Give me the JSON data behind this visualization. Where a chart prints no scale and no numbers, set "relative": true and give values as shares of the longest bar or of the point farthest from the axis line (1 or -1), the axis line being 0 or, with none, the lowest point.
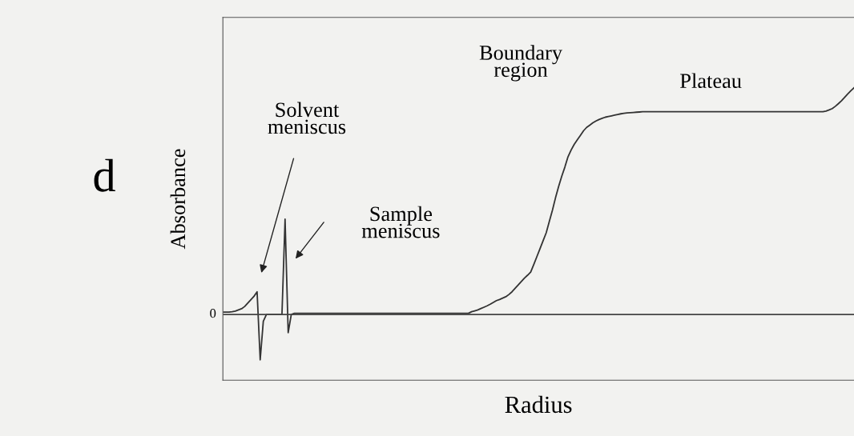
{
  "chart_data": {
    "type": "line",
    "relative": true,
    "xlabel": "Radius",
    "ylabel": "Absorbance",
    "categories": [
      null,
      null,
      null,
      null,
      null,
      null,
      null,
      null,
      null,
      null,
      null,
      null,
      null,
      null,
      null,
      null,
      null,
      null,
      null,
      null,
      null,
      null,
      null,
      null,
      null,
      null,
      null,
      null,
      null,
      null,
      null,
      null,
      null,
      null,
      null,
      null,
      null,
      null,
      null,
      null,
      null,
      null,
      null,
      null,
      null,
      null,
      null,
      null,
      null,
      null,
      null,
      null,
      null,
      null,
      null,
      null,
      null,
      null,
      null,
      null,
      null,
      null,
      null,
      null,
      null,
      null,
      null,
      null,
      null,
      null,
      null,
      null,
      null,
      null,
      null,
      null,
      null,
      null,
      null,
      null,
      null,
      null,
      null,
      null,
      null,
      null,
      null,
      null,
      null,
      null,
      null,
      null,
      null,
      null,
      null,
      null,
      null,
      null,
      null,
      null,
      null,
      null,
      null,
      null,
      null,
      null,
      null,
      null,
      null,
      null,
      null,
      null,
      null,
      null,
      null,
      null,
      null,
      null,
      null,
      null,
      null,
      null,
      null,
      null,
      null,
      null,
      null,
      null,
      null,
      null,
      null,
      null,
      null,
      null,
      null,
      null,
      null,
      null,
      null,
      null,
      null,
      null,
      null,
      null,
      null,
      null,
      null,
      null,
      null,
      null,
      null,
      null,
      null,
      null,
      null,
      null,
      null,
      null,
      null,
      null,
      null,
      null,
      null,
      null,
      null,
      null,
      null,
      null,
      null,
      null,
      null,
      null,
      null,
      null,
      null,
      null,
      null,
      null,
      null,
      null,
      null,
      null,
      null,
      null,
      null,
      null,
      null,
      null,
      null,
      null,
      null,
      null,
      null,
      null,
      null,
      null,
      null,
      null,
      null,
      null,
      null,
      null,
      null,
      null
    ],
    "series": [
      {
        "color": "#333333",
        "values": [
          0.01,
          0.01,
          0.01,
          0.012,
          0.015,
          0.02,
          0.025,
          0.035,
          0.05,
          0.065,
          0.08,
          0.1,
          -0.2,
          -0.03,
          0,
          0,
          0,
          0,
          0,
          0,
          0.42,
          -0.08,
          0,
          0.005,
          0.005,
          0.005,
          0.005,
          0.005,
          0.005,
          0.005,
          0.005,
          0.005,
          0.005,
          0.005,
          0.005,
          0.005,
          0.005,
          0.005,
          0.005,
          0.005,
          0.005,
          0.005,
          0.005,
          0.005,
          0.005,
          0.005,
          0.005,
          0.005,
          0.005,
          0.005,
          0.005,
          0.005,
          0.005,
          0.005,
          0.005,
          0.005,
          0.005,
          0.005,
          0.005,
          0.005,
          0.005,
          0.005,
          0.005,
          0.005,
          0.005,
          0.005,
          0.005,
          0.005,
          0.005,
          0.005,
          0.005,
          0.005,
          0.005,
          0.005,
          0.005,
          0.005,
          0.005,
          0.005,
          0.005,
          0.005,
          0.012,
          0.016,
          0.02,
          0.026,
          0.032,
          0.038,
          0.045,
          0.053,
          0.061,
          0.066,
          0.072,
          0.078,
          0.088,
          0.1,
          0.115,
          0.13,
          0.145,
          0.16,
          0.173,
          0.187,
          0.22,
          0.255,
          0.29,
          0.325,
          0.36,
          0.41,
          0.46,
          0.515,
          0.565,
          0.61,
          0.65,
          0.695,
          0.725,
          0.75,
          0.77,
          0.79,
          0.81,
          0.825,
          0.835,
          0.845,
          0.853,
          0.86,
          0.865,
          0.87,
          0.873,
          0.876,
          0.879,
          0.882,
          0.885,
          0.887,
          0.889,
          0.89,
          0.891,
          0.892,
          0.893,
          0.894,
          0.894,
          0.894,
          0.894,
          0.894,
          0.894,
          0.894,
          0.894,
          0.894,
          0.894,
          0.894,
          0.894,
          0.894,
          0.894,
          0.894,
          0.894,
          0.894,
          0.894,
          0.894,
          0.894,
          0.894,
          0.894,
          0.894,
          0.894,
          0.894,
          0.894,
          0.894,
          0.894,
          0.894,
          0.894,
          0.894,
          0.894,
          0.894,
          0.894,
          0.894,
          0.894,
          0.894,
          0.894,
          0.894,
          0.894,
          0.894,
          0.894,
          0.894,
          0.894,
          0.894,
          0.894,
          0.894,
          0.894,
          0.894,
          0.894,
          0.894,
          0.894,
          0.894,
          0.894,
          0.894,
          0.894,
          0.894,
          0.894,
          0.894,
          0.897,
          0.902,
          0.908,
          0.918,
          0.93,
          0.943,
          0.958,
          0.973,
          0.987,
          1
        ]
      }
    ],
    "ref_lines": [
      {
        "axis": "y",
        "value": 0,
        "label": "0",
        "color": "#444444"
      }
    ],
    "annotations": [
      "d",
      "Solvent\nmeniscus",
      "Sample\nmeniscus",
      "Boundary\nregion",
      "Plateau"
    ],
    "legend": false
  }
}
